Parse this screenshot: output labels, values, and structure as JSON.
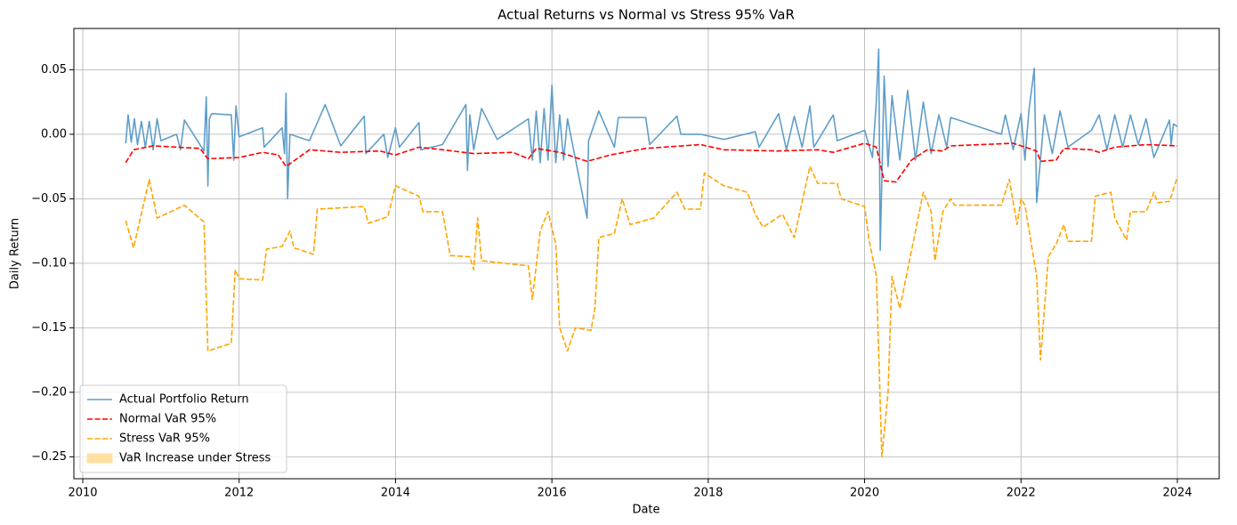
{
  "chart_data": {
    "type": "line",
    "title": "Actual Returns vs Normal vs Stress 95% VaR",
    "x_label": "Date",
    "y_label": "Daily Return",
    "xlim": [
      2009.886,
      2024.535
    ],
    "ylim": [
      -0.267,
      0.082
    ],
    "xticks": [
      2010,
      2012,
      2014,
      2016,
      2018,
      2020,
      2022,
      2024
    ],
    "yticks": [
      0.05,
      {
        "value": 0,
        "label": "0.00"
      },
      {
        "value": -0.05,
        "label": "−0.05"
      },
      {
        "value": -0.1,
        "label": "−0.10"
      },
      {
        "value": -0.15,
        "label": "−0.15"
      },
      {
        "value": -0.2,
        "label": "−0.20"
      },
      {
        "value": -0.25,
        "label": "−0.25"
      }
    ],
    "grid": true,
    "legend": "lower left",
    "series": [
      {
        "name": "Actual Portfolio Return",
        "color": "#5f9ec9",
        "dash": false,
        "x": [
          2010.55,
          2010.58,
          2010.62,
          2010.66,
          2010.7,
          2010.75,
          2010.8,
          2010.85,
          2010.9,
          2010.95,
          2011.0,
          2011.2,
          2011.25,
          2011.3,
          2011.55,
          2011.58,
          2011.6,
          2011.62,
          2011.65,
          2011.9,
          2011.93,
          2011.96,
          2012.0,
          2012.3,
          2012.32,
          2012.55,
          2012.58,
          2012.6,
          2012.62,
          2012.65,
          2012.9,
          2013.1,
          2013.3,
          2013.6,
          2013.62,
          2013.85,
          2013.9,
          2014.0,
          2014.05,
          2014.3,
          2014.32,
          2014.6,
          2014.9,
          2014.92,
          2014.95,
          2015.0,
          2015.1,
          2015.3,
          2015.7,
          2015.75,
          2015.8,
          2015.85,
          2015.9,
          2015.95,
          2016.0,
          2016.05,
          2016.1,
          2016.15,
          2016.2,
          2016.45,
          2016.47,
          2016.6,
          2016.8,
          2016.85,
          2017.2,
          2017.25,
          2017.6,
          2017.65,
          2017.9,
          2018.2,
          2018.6,
          2018.65,
          2018.9,
          2019.0,
          2019.1,
          2019.2,
          2019.3,
          2019.35,
          2019.6,
          2019.65,
          2020.0,
          2020.1,
          2020.15,
          2020.18,
          2020.2,
          2020.25,
          2020.3,
          2020.35,
          2020.45,
          2020.55,
          2020.65,
          2020.75,
          2020.85,
          2020.95,
          2021.05,
          2021.1,
          2021.75,
          2021.8,
          2021.9,
          2022.0,
          2022.05,
          2022.1,
          2022.17,
          2022.2,
          2022.3,
          2022.4,
          2022.5,
          2022.6,
          2022.9,
          2023.0,
          2023.1,
          2023.2,
          2023.3,
          2023.4,
          2023.5,
          2023.6,
          2023.7,
          2023.9,
          2023.92,
          2023.95,
          2024.0
        ],
        "values": [
          -0.007,
          0.015,
          -0.006,
          0.012,
          -0.008,
          0.01,
          -0.01,
          0.01,
          -0.012,
          0.012,
          -0.005,
          0.0,
          -0.012,
          0.011,
          -0.013,
          0.029,
          -0.04,
          0.012,
          0.016,
          0.015,
          -0.02,
          0.022,
          -0.002,
          0.005,
          -0.01,
          0.005,
          -0.015,
          0.032,
          -0.05,
          0.0,
          -0.005,
          0.023,
          -0.009,
          0.014,
          -0.015,
          0.0,
          -0.018,
          0.005,
          -0.01,
          0.009,
          -0.012,
          -0.008,
          0.023,
          -0.028,
          0.015,
          -0.012,
          0.02,
          -0.004,
          0.012,
          -0.02,
          0.018,
          -0.022,
          0.02,
          -0.02,
          0.038,
          -0.022,
          0.015,
          -0.02,
          0.012,
          -0.065,
          -0.005,
          0.018,
          -0.01,
          0.013,
          0.013,
          -0.008,
          0.014,
          0.0,
          0.0,
          -0.004,
          0.002,
          -0.01,
          0.016,
          -0.012,
          0.014,
          -0.01,
          0.022,
          -0.01,
          0.015,
          -0.005,
          0.003,
          -0.018,
          0.026,
          0.066,
          -0.09,
          0.045,
          -0.025,
          0.03,
          -0.02,
          0.034,
          -0.02,
          0.025,
          -0.015,
          0.015,
          -0.01,
          0.013,
          0.0,
          0.015,
          -0.012,
          0.016,
          -0.02,
          0.018,
          0.051,
          -0.053,
          0.015,
          -0.015,
          0.018,
          -0.01,
          0.003,
          0.015,
          -0.012,
          0.015,
          -0.01,
          0.015,
          -0.008,
          0.012,
          -0.018,
          0.011,
          -0.008,
          0.008,
          0.006
        ]
      },
      {
        "name": "Normal VaR 95%",
        "color": "#ff0000",
        "dash": true,
        "x": [
          2010.55,
          2010.65,
          2010.9,
          2011.5,
          2011.6,
          2012.0,
          2012.3,
          2012.5,
          2012.6,
          2012.9,
          2013.3,
          2013.8,
          2014.0,
          2014.3,
          2014.6,
          2015.0,
          2015.5,
          2015.7,
          2015.8,
          2016.1,
          2016.45,
          2016.75,
          2017.2,
          2017.9,
          2018.2,
          2018.9,
          2019.4,
          2019.6,
          2020.0,
          2020.15,
          2020.25,
          2020.4,
          2020.6,
          2020.8,
          2021.0,
          2021.1,
          2021.9,
          2022.2,
          2022.25,
          2022.45,
          2022.55,
          2022.9,
          2023.0,
          2023.2,
          2023.6,
          2024.0
        ],
        "values": [
          -0.022,
          -0.012,
          -0.009,
          -0.011,
          -0.019,
          -0.018,
          -0.014,
          -0.016,
          -0.025,
          -0.012,
          -0.014,
          -0.013,
          -0.016,
          -0.01,
          -0.012,
          -0.015,
          -0.014,
          -0.019,
          -0.011,
          -0.014,
          -0.021,
          -0.016,
          -0.011,
          -0.008,
          -0.012,
          -0.013,
          -0.012,
          -0.014,
          -0.007,
          -0.01,
          -0.036,
          -0.037,
          -0.02,
          -0.012,
          -0.013,
          -0.009,
          -0.007,
          -0.013,
          -0.021,
          -0.02,
          -0.011,
          -0.012,
          -0.014,
          -0.01,
          -0.008,
          -0.009
        ]
      },
      {
        "name": "Stress VaR 95%",
        "color": "#ffa500",
        "dash": true,
        "x": [
          2010.55,
          2010.65,
          2010.85,
          2010.95,
          2011.3,
          2011.55,
          2011.6,
          2011.9,
          2011.95,
          2012.0,
          2012.3,
          2012.35,
          2012.55,
          2012.65,
          2012.7,
          2012.95,
          2013.0,
          2013.6,
          2013.65,
          2013.9,
          2014.0,
          2014.3,
          2014.35,
          2014.6,
          2014.7,
          2014.95,
          2015.0,
          2015.05,
          2015.1,
          2015.7,
          2015.75,
          2015.85,
          2015.95,
          2016.05,
          2016.1,
          2016.2,
          2016.3,
          2016.5,
          2016.55,
          2016.6,
          2016.8,
          2016.9,
          2017.0,
          2017.3,
          2017.6,
          2017.7,
          2017.9,
          2017.95,
          2018.2,
          2018.5,
          2018.6,
          2018.7,
          2018.95,
          2019.1,
          2019.3,
          2019.4,
          2019.65,
          2019.7,
          2020.0,
          2020.05,
          2020.15,
          2020.22,
          2020.3,
          2020.35,
          2020.45,
          2020.6,
          2020.75,
          2020.85,
          2020.9,
          2021.0,
          2021.1,
          2021.15,
          2021.75,
          2021.85,
          2021.95,
          2022.0,
          2022.05,
          2022.2,
          2022.25,
          2022.35,
          2022.45,
          2022.55,
          2022.6,
          2022.9,
          2022.95,
          2023.15,
          2023.2,
          2023.35,
          2023.4,
          2023.6,
          2023.7,
          2023.75,
          2023.9,
          2024.0
        ],
        "values": [
          -0.067,
          -0.088,
          -0.035,
          -0.065,
          -0.055,
          -0.068,
          -0.168,
          -0.162,
          -0.105,
          -0.112,
          -0.113,
          -0.089,
          -0.087,
          -0.075,
          -0.088,
          -0.093,
          -0.058,
          -0.056,
          -0.069,
          -0.064,
          -0.04,
          -0.048,
          -0.06,
          -0.06,
          -0.094,
          -0.095,
          -0.105,
          -0.065,
          -0.098,
          -0.102,
          -0.128,
          -0.075,
          -0.06,
          -0.085,
          -0.15,
          -0.168,
          -0.15,
          -0.152,
          -0.135,
          -0.08,
          -0.077,
          -0.05,
          -0.07,
          -0.065,
          -0.045,
          -0.058,
          -0.058,
          -0.03,
          -0.04,
          -0.045,
          -0.062,
          -0.072,
          -0.062,
          -0.08,
          -0.025,
          -0.038,
          -0.038,
          -0.05,
          -0.056,
          -0.08,
          -0.11,
          -0.25,
          -0.2,
          -0.11,
          -0.135,
          -0.09,
          -0.045,
          -0.06,
          -0.098,
          -0.06,
          -0.05,
          -0.055,
          -0.055,
          -0.035,
          -0.07,
          -0.05,
          -0.055,
          -0.11,
          -0.175,
          -0.095,
          -0.085,
          -0.07,
          -0.083,
          -0.083,
          -0.048,
          -0.045,
          -0.065,
          -0.082,
          -0.06,
          -0.06,
          -0.045,
          -0.053,
          -0.052,
          -0.033
        ]
      }
    ],
    "legend_patches": [
      {
        "name": "VaR Increase under Stress",
        "color": "#ffe0a0"
      }
    ]
  }
}
